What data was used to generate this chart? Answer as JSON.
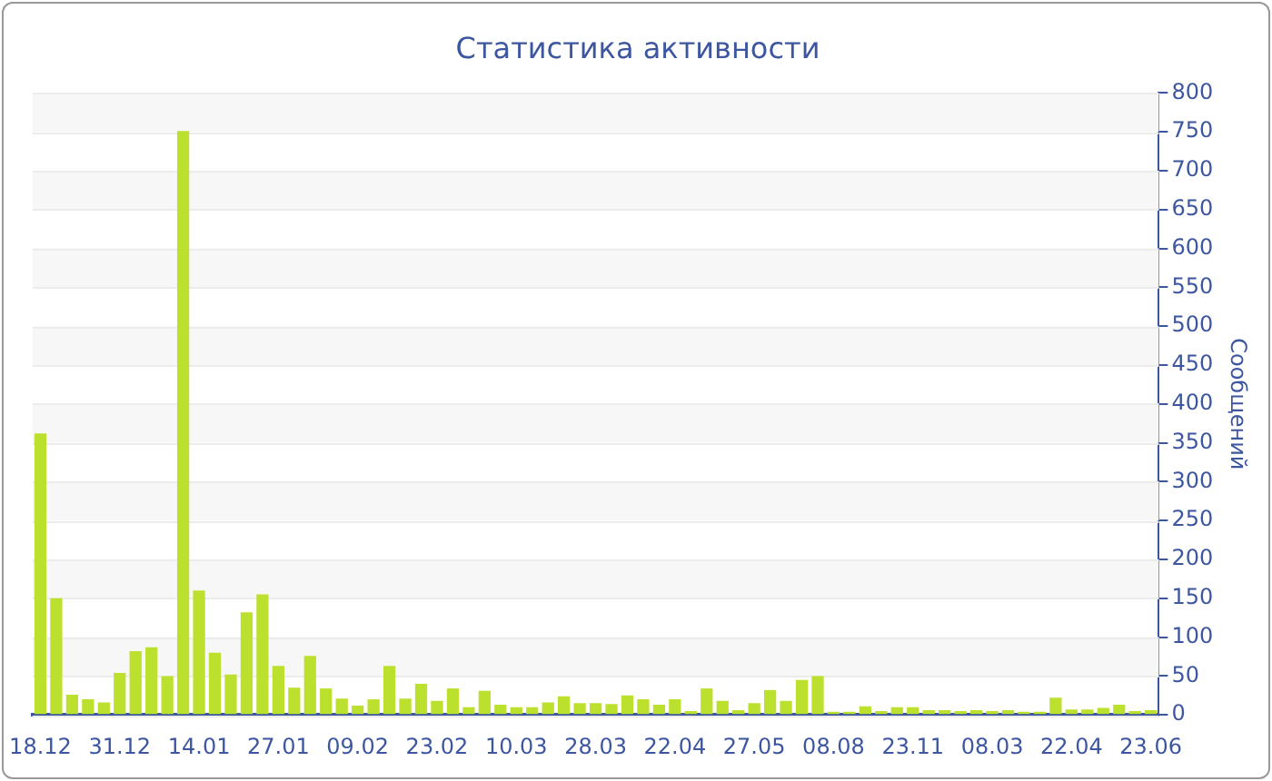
{
  "chart_data": {
    "type": "bar",
    "title": "Статистика активности",
    "ylabel": "Сообщений",
    "categories": [
      "18.12",
      null,
      null,
      null,
      null,
      "31.12",
      null,
      null,
      null,
      null,
      "14.01",
      null,
      null,
      null,
      null,
      "27.01",
      null,
      null,
      null,
      null,
      "09.02",
      null,
      null,
      null,
      null,
      "23.02",
      null,
      null,
      null,
      null,
      "10.03",
      null,
      null,
      null,
      null,
      "28.03",
      null,
      null,
      null,
      null,
      "22.04",
      null,
      null,
      null,
      null,
      "27.05",
      null,
      null,
      null,
      null,
      "08.08",
      null,
      null,
      null,
      null,
      "23.11",
      null,
      null,
      null,
      null,
      "08.03",
      null,
      null,
      null,
      null,
      "22.04",
      null,
      null,
      null,
      null,
      "23.06"
    ],
    "values": [
      362,
      150,
      26,
      20,
      16,
      54,
      82,
      87,
      50,
      751,
      160,
      80,
      52,
      132,
      155,
      63,
      35,
      76,
      34,
      21,
      12,
      20,
      63,
      21,
      40,
      18,
      34,
      10,
      31,
      13,
      10,
      10,
      16,
      24,
      15,
      15,
      14,
      25,
      20,
      13,
      20,
      5,
      34,
      18,
      6,
      15,
      32,
      18,
      45,
      50,
      4,
      4,
      11,
      5,
      10,
      10,
      6,
      6,
      5,
      6,
      5,
      6,
      4,
      4,
      22,
      7,
      7,
      9,
      13,
      5,
      6
    ],
    "color": "#bce02e",
    "ylim": [
      0,
      800
    ],
    "yticks": [
      0,
      50,
      100,
      150,
      200,
      250,
      300,
      350,
      400,
      450,
      500,
      550,
      600,
      650,
      700,
      750,
      800
    ],
    "grid": "y",
    "legend": false
  }
}
